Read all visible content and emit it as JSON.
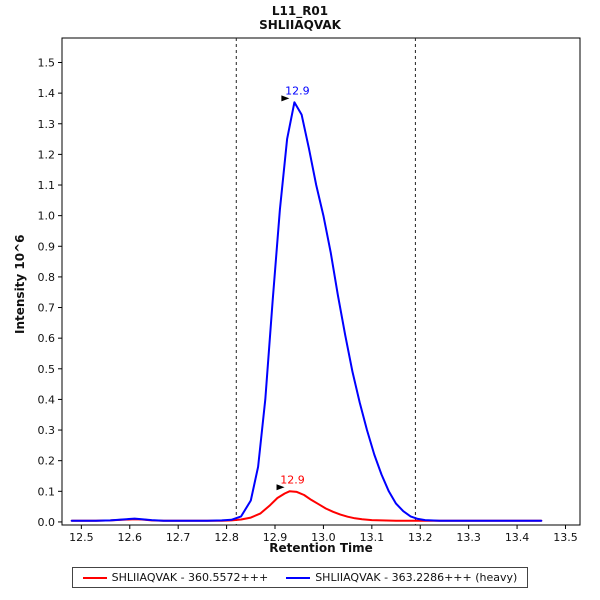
{
  "chart_data": {
    "type": "line",
    "title": "L11_R01",
    "subtitle": "SHLIIAQVAK",
    "xlabel": "Retention Time",
    "ylabel": "Intensity 10^6",
    "xlim": [
      12.46,
      13.53
    ],
    "ylim": [
      -0.01,
      1.58
    ],
    "x_ticks": [
      12.5,
      12.6,
      12.7,
      12.8,
      12.9,
      13.0,
      13.1,
      13.2,
      13.3,
      13.4,
      13.5
    ],
    "y_ticks": [
      0.0,
      0.1,
      0.2,
      0.3,
      0.4,
      0.5,
      0.6,
      0.7,
      0.8,
      0.9,
      1.0,
      1.1,
      1.2,
      1.3,
      1.4,
      1.5
    ],
    "grid": false,
    "legend_position": "bottom",
    "integration_boundaries": [
      12.82,
      13.19
    ],
    "boundary_style": "dashed",
    "series": [
      {
        "name": "SHLIIAQVAK - 360.5572+++",
        "color": "#ff0000",
        "peak_annotation": {
          "label": "12.9",
          "x": 12.93,
          "y": 0.1
        },
        "points": [
          [
            12.48,
            0.004
          ],
          [
            12.5,
            0.004
          ],
          [
            12.53,
            0.004
          ],
          [
            12.56,
            0.005
          ],
          [
            12.585,
            0.007
          ],
          [
            12.61,
            0.009
          ],
          [
            12.625,
            0.008
          ],
          [
            12.645,
            0.005
          ],
          [
            12.67,
            0.004
          ],
          [
            12.7,
            0.004
          ],
          [
            12.73,
            0.004
          ],
          [
            12.76,
            0.004
          ],
          [
            12.79,
            0.004
          ],
          [
            12.81,
            0.005
          ],
          [
            12.83,
            0.008
          ],
          [
            12.85,
            0.014
          ],
          [
            12.87,
            0.028
          ],
          [
            12.89,
            0.055
          ],
          [
            12.905,
            0.078
          ],
          [
            12.92,
            0.093
          ],
          [
            12.93,
            0.1
          ],
          [
            12.945,
            0.098
          ],
          [
            12.96,
            0.088
          ],
          [
            12.975,
            0.072
          ],
          [
            12.99,
            0.058
          ],
          [
            13.005,
            0.044
          ],
          [
            13.02,
            0.033
          ],
          [
            13.035,
            0.024
          ],
          [
            13.05,
            0.017
          ],
          [
            13.065,
            0.012
          ],
          [
            13.08,
            0.009
          ],
          [
            13.1,
            0.006
          ],
          [
            13.12,
            0.005
          ],
          [
            13.15,
            0.004
          ],
          [
            13.19,
            0.004
          ],
          [
            13.23,
            0.004
          ],
          [
            13.28,
            0.004
          ],
          [
            13.33,
            0.004
          ],
          [
            13.39,
            0.004
          ],
          [
            13.45,
            0.004
          ]
        ]
      },
      {
        "name": "SHLIIAQVAK - 363.2286+++ (heavy)",
        "color": "#0000ff",
        "peak_annotation": {
          "label": "12.9",
          "x": 12.94,
          "y": 1.37
        },
        "points": [
          [
            12.48,
            0.004
          ],
          [
            12.5,
            0.004
          ],
          [
            12.53,
            0.004
          ],
          [
            12.56,
            0.005
          ],
          [
            12.585,
            0.008
          ],
          [
            12.61,
            0.011
          ],
          [
            12.625,
            0.009
          ],
          [
            12.645,
            0.006
          ],
          [
            12.67,
            0.004
          ],
          [
            12.7,
            0.004
          ],
          [
            12.73,
            0.004
          ],
          [
            12.76,
            0.004
          ],
          [
            12.79,
            0.005
          ],
          [
            12.81,
            0.007
          ],
          [
            12.83,
            0.018
          ],
          [
            12.85,
            0.07
          ],
          [
            12.865,
            0.18
          ],
          [
            12.88,
            0.4
          ],
          [
            12.895,
            0.72
          ],
          [
            12.91,
            1.02
          ],
          [
            12.925,
            1.25
          ],
          [
            12.94,
            1.37
          ],
          [
            12.955,
            1.33
          ],
          [
            12.97,
            1.22
          ],
          [
            12.985,
            1.1
          ],
          [
            13.0,
            1.0
          ],
          [
            13.015,
            0.88
          ],
          [
            13.03,
            0.74
          ],
          [
            13.045,
            0.61
          ],
          [
            13.06,
            0.49
          ],
          [
            13.075,
            0.39
          ],
          [
            13.09,
            0.3
          ],
          [
            13.105,
            0.22
          ],
          [
            13.12,
            0.155
          ],
          [
            13.135,
            0.1
          ],
          [
            13.15,
            0.06
          ],
          [
            13.165,
            0.035
          ],
          [
            13.18,
            0.018
          ],
          [
            13.195,
            0.01
          ],
          [
            13.21,
            0.006
          ],
          [
            13.24,
            0.004
          ],
          [
            13.28,
            0.004
          ],
          [
            13.33,
            0.004
          ],
          [
            13.39,
            0.004
          ],
          [
            13.45,
            0.004
          ]
        ]
      }
    ]
  }
}
